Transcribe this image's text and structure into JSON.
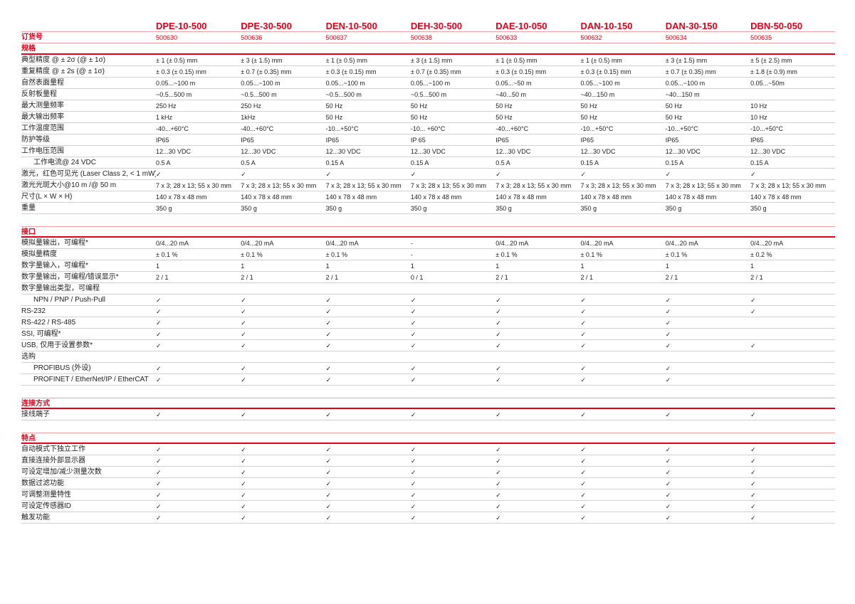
{
  "accent_color": "#e2001a",
  "models": [
    "DPE-10-500",
    "DPE-30-500",
    "DEN-10-500",
    "DEH-30-500",
    "DAE-10-050",
    "DAN-10-150",
    "DAN-30-150",
    "DBN-50-050"
  ],
  "order_label": "订货号",
  "order_numbers": [
    "500630",
    "500636",
    "500637",
    "500638",
    "500633",
    "500632",
    "500634",
    "500635"
  ],
  "sections": [
    {
      "title": "规格",
      "rows": [
        {
          "label": "典型精度 @ ± 2σ (@ ± 1σ)",
          "values": [
            "± 1 (± 0.5) mm",
            "± 3 (± 1.5) mm",
            "± 1 (± 0.5) mm",
            "± 3 (± 1.5) mm",
            "± 1 (± 0.5) mm",
            "± 1 (± 0.5) mm",
            "± 3 (± 1.5) mm",
            "± 5 (± 2.5) mm"
          ]
        },
        {
          "label": "重复精度 @ ± 2s (@ ± 1σ)",
          "values": [
            "± 0.3 (± 0.15) mm",
            "± 0.7 (± 0.35) mm",
            "± 0.3 (± 0.15) mm",
            "± 0.7 (± 0.35) mm",
            "± 0.3 (± 0.15) mm",
            "± 0.3 (± 0.15) mm",
            "± 0.7 (± 0.35) mm",
            "± 1.8 (± 0.9) mm"
          ]
        },
        {
          "label": "自然表面量程",
          "values": [
            "0.05...~100 m",
            "0.05...~100 m",
            "0.05...~100 m",
            "0.05...~100 m",
            "0.05...~50 m",
            "0.05...~100 m",
            "0.05...~100 m",
            "0.05...~50m"
          ]
        },
        {
          "label": "反射板量程",
          "values": [
            " ~0.5...500 m",
            " ~0.5...500 m",
            " ~0.5...500 m",
            " ~0.5...500 m",
            "~40...50 m",
            "~40...150 m",
            "~40...150 m",
            ""
          ]
        },
        {
          "label": "最大测量频率",
          "values": [
            "250 Hz",
            "250 Hz",
            "50 Hz",
            "50 Hz",
            "50 Hz",
            "50 Hz",
            "50 Hz",
            "10 Hz"
          ]
        },
        {
          "label": "最大输出频率",
          "values": [
            "1 kHz",
            "1kHz",
            "50 Hz",
            "50 Hz",
            "50 Hz",
            "50 Hz",
            "50 Hz",
            "10 Hz"
          ]
        },
        {
          "label": "工作温度范围",
          "values": [
            "-40...+60°C",
            "-40...+60°C",
            "-10...+50°C",
            "-10... +60°C",
            "-40...+60°C",
            "-10...+50°C",
            "-10...+50°C",
            "-10...+50°C"
          ]
        },
        {
          "label": "防护等级",
          "values": [
            "IP65",
            "IP65",
            "IP65",
            "IP 65",
            "IP65",
            "IP65",
            "IP65",
            "IP65"
          ]
        },
        {
          "label": "工作电压范围",
          "values": [
            "12...30 VDC",
            "12...30 VDC",
            "12...30 VDC",
            "12...30 VDC",
            "12...30 VDC",
            "12...30 VDC",
            "12...30 VDC",
            "12...30 VDC"
          ]
        },
        {
          "label": "工作电流@ 24 VDC",
          "indent": true,
          "values": [
            "0.5 A",
            "0.5 A",
            "0.15 A",
            "0.15 A",
            "0.5 A",
            "0.15 A",
            "0.15 A",
            "0.15 A"
          ]
        },
        {
          "label": "激光，红色可见光 (Laser Class 2, < 1 mW)",
          "values": [
            "✓",
            "✓",
            "✓",
            "✓",
            "✓",
            "✓",
            "✓",
            "✓"
          ]
        },
        {
          "label": "激光光斑大小@10 m /@ 50 m",
          "values": [
            "7 x 3; 28 x 13; 55 x 30 mm",
            "7 x 3; 28 x 13; 55 x 30 mm",
            "7 x 3; 28 x 13; 55 x 30 mm",
            "7 x 3; 28 x 13; 55 x 30 mm",
            "7 x 3; 28 x 13; 55 x 30 mm",
            "7 x 3; 28 x 13; 55 x 30 mm",
            "7 x 3; 28 x 13; 55 x 30 mm",
            "7 x 3; 28 x 13; 55 x 30 mm"
          ]
        },
        {
          "label": "尺寸(L × W × H)",
          "values": [
            "140 x 78 x 48 mm",
            "140 x 78 x 48 mm",
            "140 x 78 x 48 mm",
            "140 x 78 x 48 mm",
            "140 x 78 x 48 mm",
            "140 x 78 x 48 mm",
            "140 x 78 x 48 mm",
            "140 x 78 x 48 mm"
          ]
        },
        {
          "label": "重量",
          "values": [
            "350 g",
            "350 g",
            "350 g",
            "350 g",
            "350 g",
            "350 g",
            "350 g",
            "350 g"
          ]
        }
      ]
    },
    {
      "title": "接口",
      "rows": [
        {
          "label": "模拟量输出，可编程*",
          "values": [
            "0/4...20 mA",
            "0/4...20 mA",
            "0/4...20 mA",
            "-",
            "0/4...20 mA",
            "0/4...20 mA",
            "0/4...20 mA",
            "0/4...20 mA"
          ]
        },
        {
          "label": "模拟量精度",
          "values": [
            "± 0.1 %",
            "± 0.1 %",
            "± 0.1 %",
            "-",
            "± 0.1 %",
            "± 0.1 %",
            "± 0.1 %",
            "± 0.2 %"
          ]
        },
        {
          "label": "数字量输入，可编程*",
          "values": [
            "1",
            "1",
            "1",
            "1",
            "1",
            "1",
            "1",
            "1"
          ]
        },
        {
          "label": "数字量输出，可编程/错误显示*",
          "values": [
            "2 / 1",
            "2 / 1",
            "2 / 1",
            "0 / 1",
            "2 / 1",
            "2 / 1",
            "2 / 1",
            "2 / 1"
          ]
        },
        {
          "label": "数字量输出类型，可编程",
          "values": [
            "",
            "",
            "",
            "",
            "",
            "",
            "",
            ""
          ]
        },
        {
          "label": "NPN / PNP / Push-Pull",
          "indent": true,
          "values": [
            "✓",
            "✓",
            "✓",
            "✓",
            "✓",
            "✓",
            "✓",
            "✓"
          ]
        },
        {
          "label": "RS-232",
          "values": [
            "✓",
            "✓",
            "✓",
            "✓",
            "✓",
            "✓",
            "✓",
            "✓"
          ]
        },
        {
          "label": "RS-422 / RS-485",
          "values": [
            "✓",
            "✓",
            "✓",
            "✓",
            "✓",
            "✓",
            "✓",
            ""
          ]
        },
        {
          "label": "SSI, 可编程*",
          "values": [
            "✓",
            "✓",
            "✓",
            "✓",
            "✓",
            "✓",
            "✓",
            ""
          ]
        },
        {
          "label": "USB, 仅用于设置参数*",
          "values": [
            "✓",
            "✓",
            "✓",
            "✓",
            "✓",
            "✓",
            "✓",
            "✓"
          ]
        },
        {
          "label": "选购",
          "values": [
            "",
            "",
            "",
            "",
            "",
            "",
            "",
            ""
          ]
        },
        {
          "label": "PROFIBUS (外设)",
          "indent": true,
          "values": [
            "✓",
            "✓",
            "✓",
            "✓",
            "✓",
            "✓",
            "✓",
            ""
          ]
        },
        {
          "label": "PROFINET / EtherNet/IP / EtherCAT",
          "indent": true,
          "values": [
            "✓",
            "✓",
            "✓",
            "✓",
            "✓",
            "✓",
            "✓",
            ""
          ]
        }
      ]
    },
    {
      "title": "连接方式",
      "rows": [
        {
          "label": "接线端子",
          "values": [
            "✓",
            "✓",
            "✓",
            "✓",
            "✓",
            "✓",
            "✓",
            "✓"
          ]
        }
      ]
    },
    {
      "title": "特点",
      "rows": [
        {
          "label": "自动模式下独立工作",
          "values": [
            "✓",
            "✓",
            "✓",
            "✓",
            "✓",
            "✓",
            "✓",
            "✓"
          ]
        },
        {
          "label": "直接连接外部显示器",
          "values": [
            "✓",
            "✓",
            "✓",
            "✓",
            "✓",
            "✓",
            "✓",
            "✓"
          ]
        },
        {
          "label": "可设定增加/减少测量次数",
          "values": [
            "✓",
            "✓",
            "✓",
            "✓",
            "✓",
            "✓",
            "✓",
            "✓"
          ]
        },
        {
          "label": "数据过滤功能",
          "values": [
            "✓",
            "✓",
            "✓",
            "✓",
            "✓",
            "✓",
            "✓",
            "✓"
          ]
        },
        {
          "label": "可调整测量特性",
          "values": [
            "✓",
            "✓",
            "✓",
            "✓",
            "✓",
            "✓",
            "✓",
            "✓"
          ]
        },
        {
          "label": "可设定传感器ID",
          "values": [
            "✓",
            "✓",
            "✓",
            "✓",
            "✓",
            "✓",
            "✓",
            "✓"
          ]
        },
        {
          "label": "触发功能",
          "values": [
            "✓",
            "✓",
            "✓",
            "✓",
            "✓",
            "✓",
            "✓",
            "✓"
          ]
        }
      ]
    }
  ]
}
